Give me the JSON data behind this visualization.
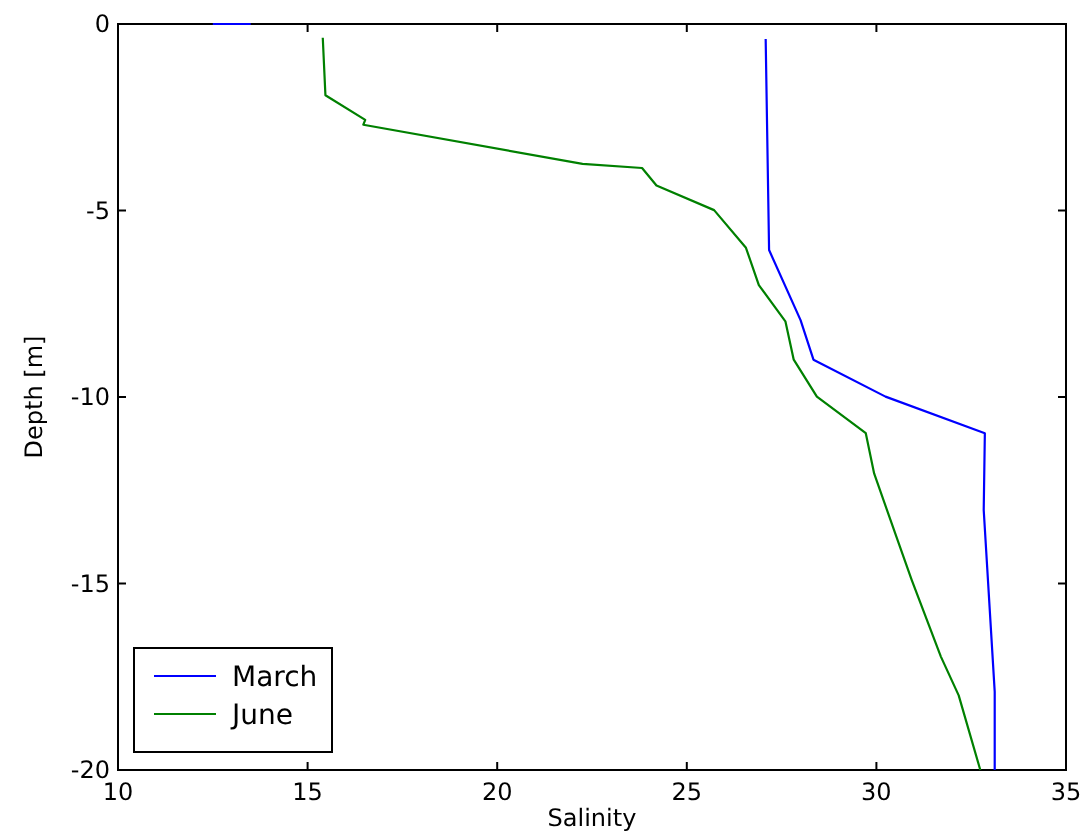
{
  "chart_data": {
    "type": "line",
    "xlabel": "Salinity",
    "ylabel": "Depth [m]",
    "xlim": [
      10,
      35
    ],
    "ylim": [
      -20,
      0
    ],
    "xticks": [
      10,
      15,
      20,
      25,
      30,
      35
    ],
    "yticks": [
      -20,
      -15,
      -10,
      -5,
      0
    ],
    "grid": false,
    "legend": "bottom left",
    "marker": "none",
    "line_style": "solid",
    "series": [
      {
        "name": "March",
        "color": "#0000ff",
        "x": [
          12.5,
          13.5,
          null,
          27.08,
          27.17,
          28.0,
          28.34,
          30.24,
          32.86,
          32.83,
          33.12,
          33.12
        ],
        "values": [
          0,
          0,
          null,
          -0.4,
          -6.06,
          -7.94,
          -9.0,
          -9.99,
          -10.97,
          -13.03,
          -17.9,
          -20
        ]
      },
      {
        "name": "June",
        "color": "#008000",
        "x": [
          15.4,
          15.47,
          16.52,
          16.47,
          22.25,
          23.82,
          24.2,
          25.72,
          26.56,
          26.9,
          27.6,
          27.82,
          28.43,
          29.72,
          29.94,
          30.58,
          30.93,
          31.7,
          32.17,
          32.74
        ],
        "values": [
          -0.37,
          -1.91,
          -2.57,
          -2.7,
          -3.75,
          -3.86,
          -4.33,
          -4.99,
          -6.0,
          -7.0,
          -7.97,
          -9.0,
          -9.99,
          -10.97,
          -12.05,
          -13.9,
          -14.9,
          -16.96,
          -18.0,
          -20
        ]
      }
    ]
  }
}
